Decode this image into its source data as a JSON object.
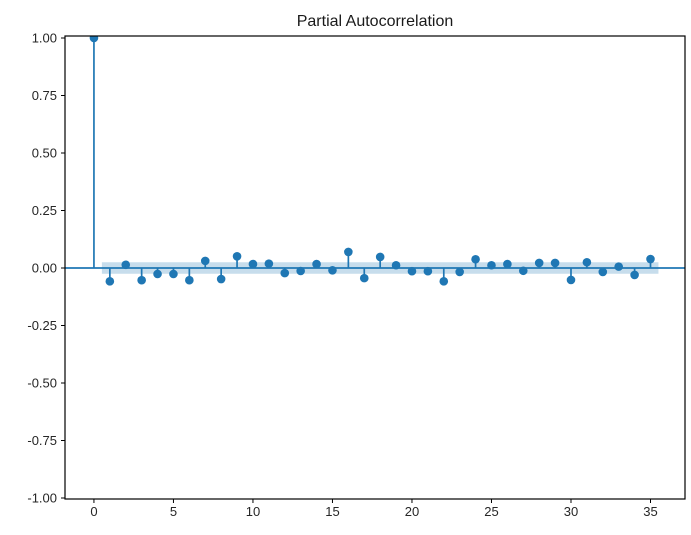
{
  "chart_data": {
    "type": "stem",
    "title": "Partial Autocorrelation",
    "xlabel": "",
    "ylabel": "",
    "x": [
      0,
      1,
      2,
      3,
      4,
      5,
      6,
      7,
      8,
      9,
      10,
      11,
      12,
      13,
      14,
      15,
      16,
      17,
      18,
      19,
      20,
      21,
      22,
      23,
      24,
      25,
      26,
      27,
      28,
      29,
      30,
      31,
      32,
      33,
      34,
      35
    ],
    "values": [
      1.0,
      -0.058,
      0.014,
      -0.053,
      -0.026,
      -0.026,
      -0.053,
      0.031,
      -0.048,
      0.051,
      0.017,
      0.019,
      -0.022,
      -0.013,
      0.017,
      -0.01,
      0.07,
      -0.044,
      0.048,
      0.012,
      -0.014,
      -0.014,
      -0.058,
      -0.017,
      0.038,
      0.012,
      0.017,
      -0.012,
      0.022,
      0.022,
      -0.052,
      0.025,
      -0.017,
      0.006,
      -0.03,
      0.039
    ],
    "confidence_band": {
      "half_width": 0.025,
      "x_start": 0.5,
      "x_end": 35.5
    },
    "zero_line": 0,
    "xticks": [
      0,
      5,
      10,
      15,
      20,
      25,
      30,
      35
    ],
    "xtick_labels": [
      "0",
      "5",
      "10",
      "15",
      "20",
      "25",
      "30",
      "35"
    ],
    "yticks": [
      1.0,
      0.75,
      0.5,
      0.25,
      0.0,
      -0.25,
      -0.5,
      -0.75,
      -1.0
    ],
    "ytick_labels": [
      "1.00",
      "0.75",
      "0.50",
      "0.25",
      "0.00",
      "-0.25",
      "-0.50",
      "-0.75",
      "-1.00"
    ],
    "xlim": [
      -1.82,
      37.17
    ],
    "ylim": [
      -1.0043,
      1.0087
    ],
    "grid": false,
    "legend": null,
    "marker_radius": 4.3,
    "stem_width": 1.7,
    "colors": {
      "stem": "#1f77b4",
      "marker": "#1f77b4",
      "zero_line": "#1f77b4",
      "band_fill": "#1f77b4",
      "band_alpha": 0.25,
      "frame": "#000000",
      "tick": "#000000",
      "tick_text": "#262626",
      "title_text": "#1a1a1a",
      "background": "#ffffff"
    }
  }
}
